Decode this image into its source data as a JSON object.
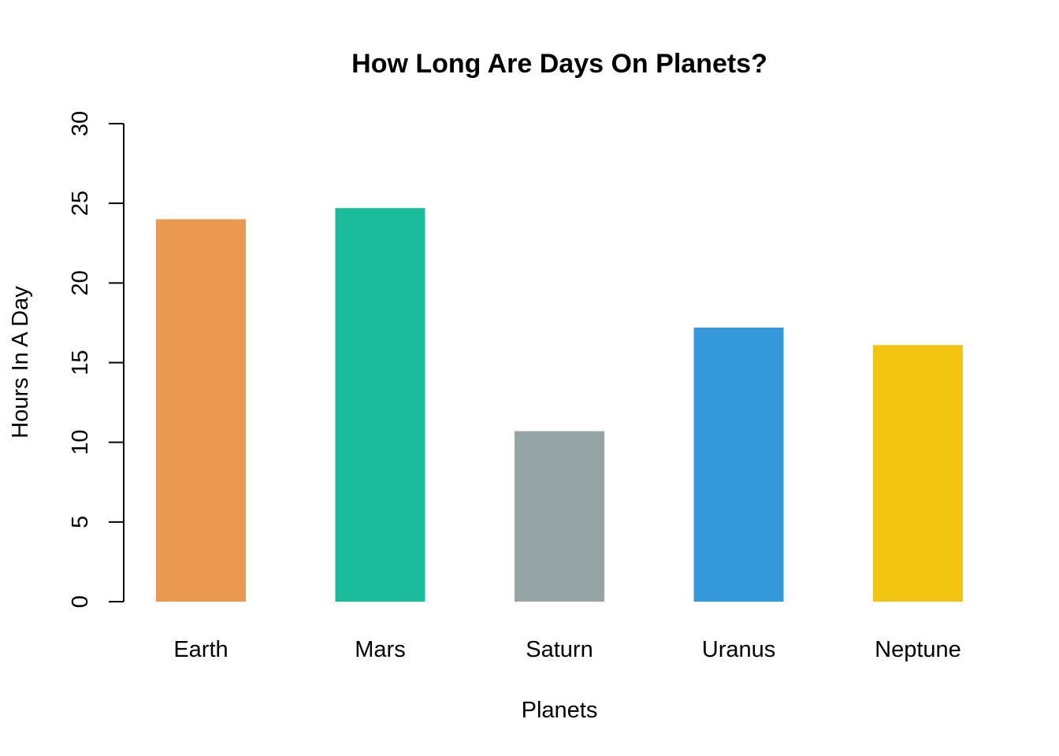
{
  "chart_data": {
    "type": "bar",
    "title": "How Long Are Days On Planets?",
    "xlabel": "Planets",
    "ylabel": "Hours In A Day",
    "categories": [
      "Earth",
      "Mars",
      "Saturn",
      "Uranus",
      "Neptune"
    ],
    "values": [
      24,
      24.7,
      10.7,
      17.2,
      16.1
    ],
    "colors": [
      "#EB9850",
      "#1ABC9C",
      "#95A5A6",
      "#3498DB",
      "#F1C40F"
    ],
    "ylim": [
      0,
      30
    ],
    "yticks": [
      "0",
      "5",
      "10",
      "15",
      "20",
      "25",
      "30"
    ],
    "grid": false,
    "legend": "none"
  }
}
